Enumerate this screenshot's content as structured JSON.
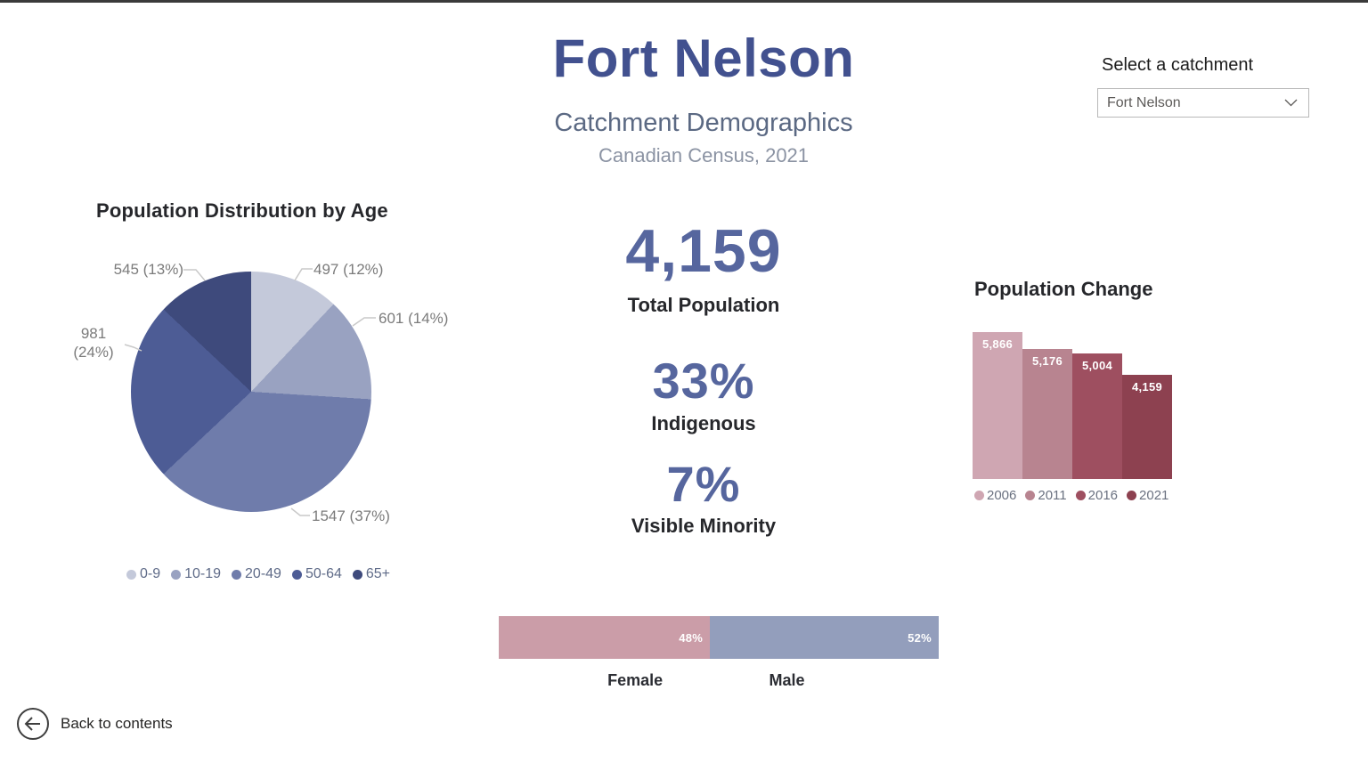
{
  "page": {
    "title": "Fort Nelson",
    "subtitle": "Catchment Demographics",
    "census_note": "Canadian Census, 2021"
  },
  "catchment_selector": {
    "label": "Select a catchment",
    "value": "Fort Nelson",
    "icon": "chevron-down-icon"
  },
  "kpis": [
    {
      "value": "4,159",
      "label": "Total Population"
    },
    {
      "value": "33%",
      "label": "Indigenous"
    },
    {
      "value": "7%",
      "label": "Visible Minority"
    }
  ],
  "back_button": {
    "label": "Back to contents",
    "icon": "arrow-left-circle-icon"
  },
  "theme": {
    "title_color": "#42518F",
    "kpi_number_color": "#56669E",
    "dark_text_color": "#26272B",
    "pie_label_color": "#7B7B7B",
    "legend_text_color": "#5F6B88"
  },
  "chart_data": [
    {
      "type": "pie",
      "title": "Population Distribution by Age",
      "categories": [
        "0-9",
        "10-19",
        "20-49",
        "50-64",
        "65+"
      ],
      "values": [
        497,
        601,
        1547,
        981,
        545
      ],
      "percents": [
        12,
        14,
        37,
        24,
        13
      ],
      "slice_labels": [
        "497 (12%)",
        "601 (14%)",
        "1547 (37%)",
        "981 (24%)",
        "545 (13%)"
      ],
      "colors": [
        "#C4C9DA",
        "#99A2C1",
        "#6F7CAB",
        "#4D5C95",
        "#3E4A7C"
      ],
      "start_angle": "top",
      "direction": "clockwise",
      "legend_position": "bottom"
    },
    {
      "type": "bar",
      "title": "Population Change",
      "categories": [
        "2006",
        "2011",
        "2016",
        "2021"
      ],
      "values": [
        5866,
        5176,
        5004,
        4159
      ],
      "value_labels": [
        "5,866",
        "5,176",
        "5,004",
        "4,159"
      ],
      "colors": [
        "#CFA6B2",
        "#B88490",
        "#9E4F60",
        "#8D4150"
      ],
      "data_label_color": "#FFFFFF",
      "legend_position": "bottom"
    },
    {
      "type": "bar",
      "subtype": "stacked-100-horizontal",
      "title": "",
      "categories": [
        "Female",
        "Male"
      ],
      "values": [
        48,
        52
      ],
      "value_labels": [
        "48%",
        "52%"
      ],
      "colors": [
        "#CB9DA8",
        "#939EBC"
      ],
      "data_label_color": "#FFFFFF"
    }
  ]
}
